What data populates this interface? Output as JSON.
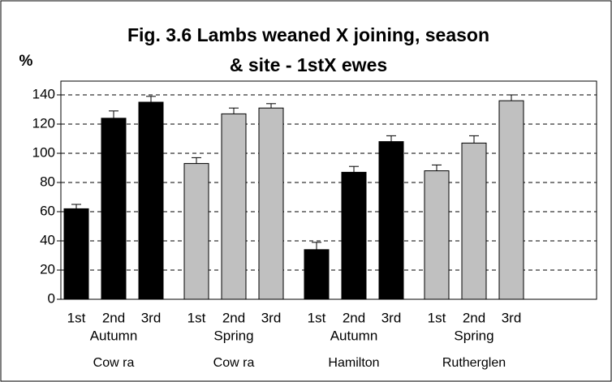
{
  "chart_data": {
    "type": "bar",
    "title_lines": [
      "Fig. 3.6 Lambs weaned X joining, season",
      "& site - 1stX ewes"
    ],
    "ylabel": "%",
    "groups": [
      {
        "season": "Autumn",
        "site": "Cow ra",
        "color": "#000000",
        "categories": [
          "1st",
          "2nd",
          "3rd"
        ],
        "values": [
          62,
          124,
          135
        ],
        "errors": [
          3,
          5,
          4
        ]
      },
      {
        "season": "Spring",
        "site": "Cow ra",
        "color": "#c0c0c0",
        "categories": [
          "1st",
          "2nd",
          "3rd"
        ],
        "values": [
          93,
          127,
          131
        ],
        "errors": [
          4,
          4,
          3
        ]
      },
      {
        "season": "Autumn",
        "site": "Hamilton",
        "color": "#000000",
        "categories": [
          "1st",
          "2nd",
          "3rd"
        ],
        "values": [
          34,
          87,
          108
        ],
        "errors": [
          5,
          4,
          4
        ]
      },
      {
        "season": "Spring",
        "site": "Rutherglen",
        "color": "#c0c0c0",
        "categories": [
          "1st",
          "2nd",
          "3rd"
        ],
        "values": [
          88,
          107,
          136
        ],
        "errors": [
          4,
          5,
          4
        ]
      }
    ],
    "ylim": [
      0,
      140
    ],
    "yticks": [
      0,
      20,
      40,
      60,
      80,
      100,
      120,
      140
    ],
    "grid": true
  }
}
